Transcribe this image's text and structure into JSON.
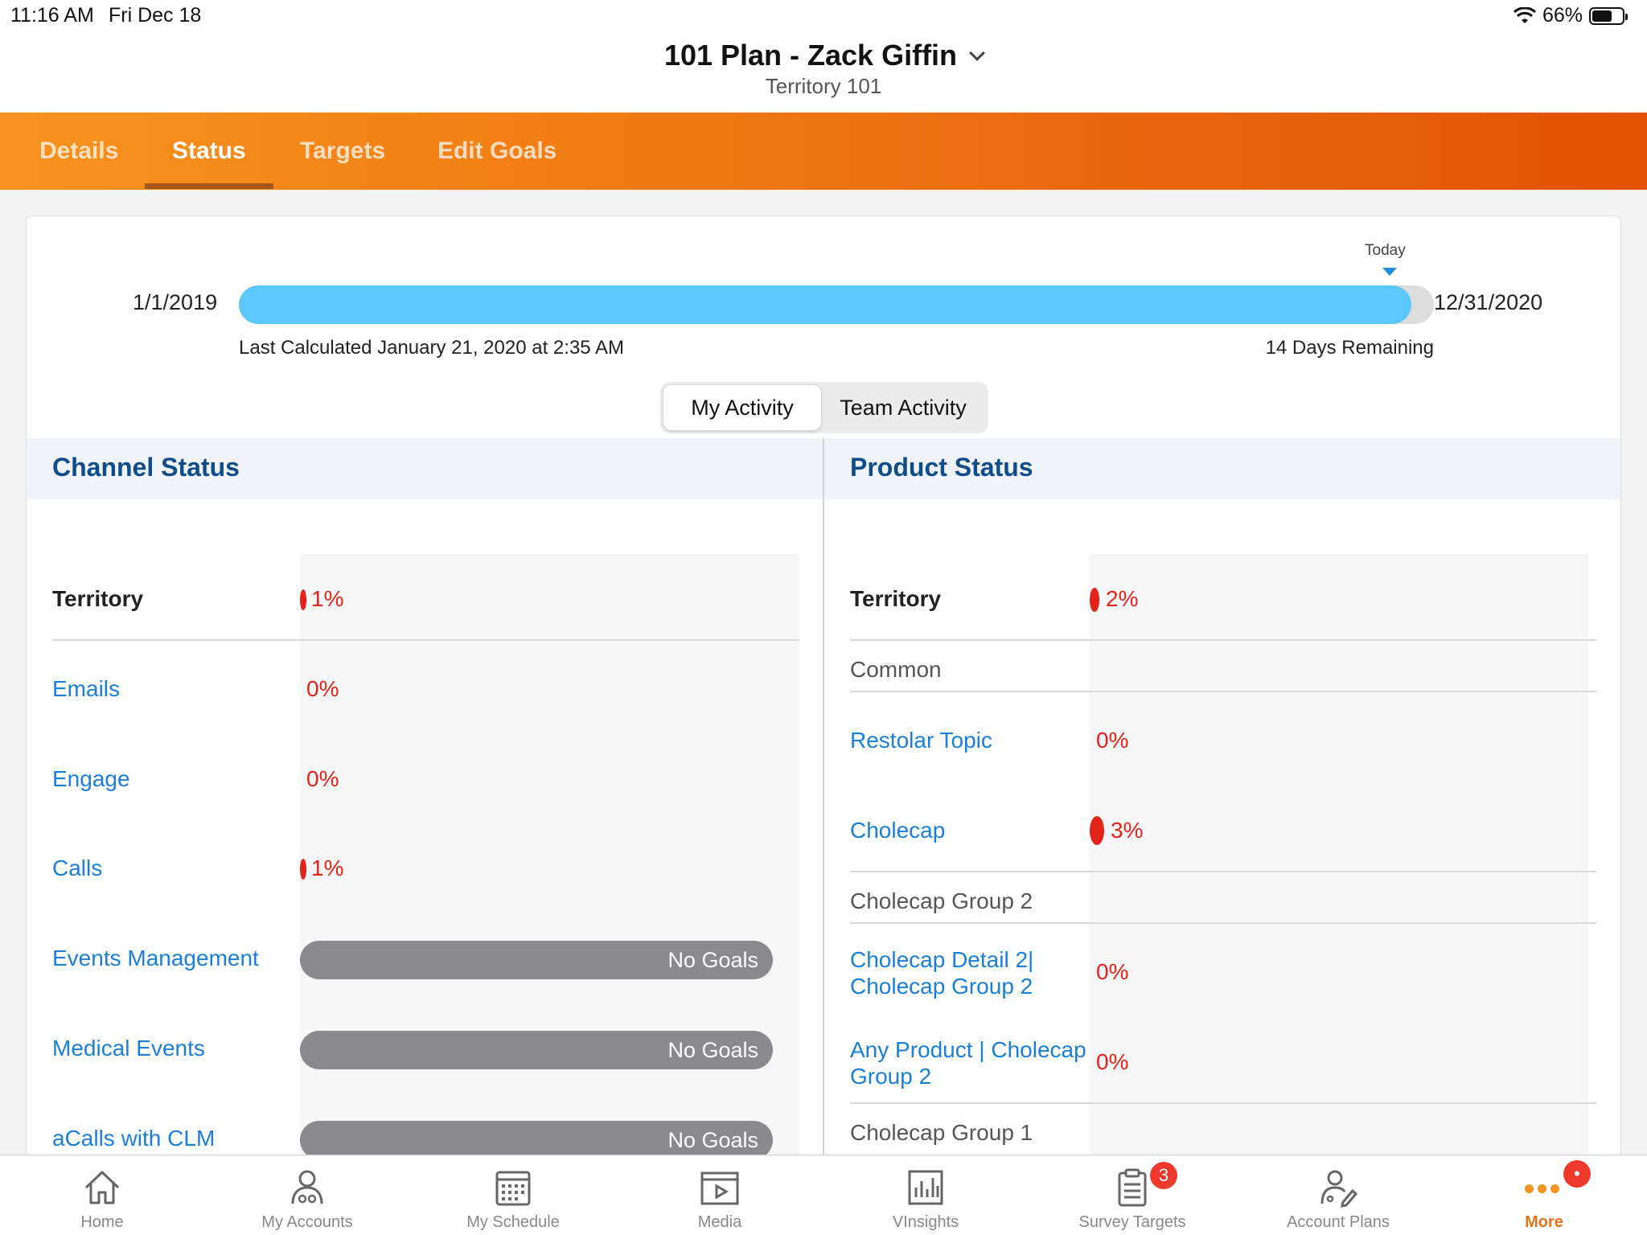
{
  "status_bar": {
    "time": "11:16 AM",
    "date": "Fri Dec 18",
    "battery": "66%",
    "battery_level": 0.66
  },
  "header": {
    "title": "101 Plan - Zack Giffin",
    "subtitle": "Territory 101"
  },
  "tabs": [
    {
      "label": "Details"
    },
    {
      "label": "Status",
      "active": true
    },
    {
      "label": "Targets"
    },
    {
      "label": "Edit Goals"
    }
  ],
  "timeline": {
    "today_label": "Today",
    "start_date": "1/1/2019",
    "end_date": "12/31/2020",
    "progress": 0.981,
    "last_calculated": "Last Calculated January 21, 2020 at 2:35 AM",
    "days_remaining": "14 Days Remaining"
  },
  "activity_toggle": {
    "options": [
      "My Activity",
      "Team Activity"
    ],
    "selected": "My Activity"
  },
  "channel_status": {
    "title": "Channel Status",
    "rows": [
      {
        "label": "Territory",
        "value": "1%",
        "kind": "total"
      },
      {
        "label": "Emails",
        "value": "0%",
        "kind": "item"
      },
      {
        "label": "Engage",
        "value": "0%",
        "kind": "item"
      },
      {
        "label": "Calls",
        "value": "1%",
        "kind": "item"
      },
      {
        "label": "Events Management",
        "value": "No Goals",
        "kind": "nogoals"
      },
      {
        "label": "Medical Events",
        "value": "No Goals",
        "kind": "nogoals"
      },
      {
        "label": "aCalls with CLM",
        "value": "No Goals",
        "kind": "nogoals"
      }
    ]
  },
  "product_status": {
    "title": "Product Status",
    "rows": [
      {
        "label": "Territory",
        "value": "2%",
        "kind": "total"
      },
      {
        "label": "Common",
        "kind": "group"
      },
      {
        "label": "Restolar Topic",
        "value": "0%",
        "kind": "item"
      },
      {
        "label": "Cholecap",
        "value": "3%",
        "kind": "item"
      },
      {
        "label": "Cholecap Group 2",
        "kind": "group"
      },
      {
        "label": "Cholecap Detail 2| Cholecap Group 2",
        "label_line1": "Cholecap Detail 2|",
        "label_line2": "Cholecap Group 2",
        "value": "0%",
        "kind": "item"
      },
      {
        "label": "Any Product | Cholecap Group 2",
        "label_line1": "Any Product | Cholecap",
        "label_line2": "Group 2",
        "value": "0%",
        "kind": "item"
      },
      {
        "label": "Cholecap Group 1",
        "kind": "group"
      }
    ]
  },
  "bottom_nav": [
    {
      "label": "Home",
      "icon": "home-icon"
    },
    {
      "label": "My Accounts",
      "icon": "accounts-icon"
    },
    {
      "label": "My Schedule",
      "icon": "calendar-icon"
    },
    {
      "label": "Media",
      "icon": "media-icon"
    },
    {
      "label": "VInsights",
      "icon": "chart-icon"
    },
    {
      "label": "Survey Targets",
      "icon": "clipboard-icon",
      "badge": "3"
    },
    {
      "label": "Account Plans",
      "icon": "account-plans-icon"
    },
    {
      "label": "More",
      "icon": "more-icon",
      "active": true,
      "badge": "•"
    }
  ],
  "colors": {
    "accent": "#f7931e",
    "link": "#1a7fd9",
    "negative": "#e2231a",
    "progress": "#5ac8fa",
    "heading": "#0f4c8a"
  }
}
